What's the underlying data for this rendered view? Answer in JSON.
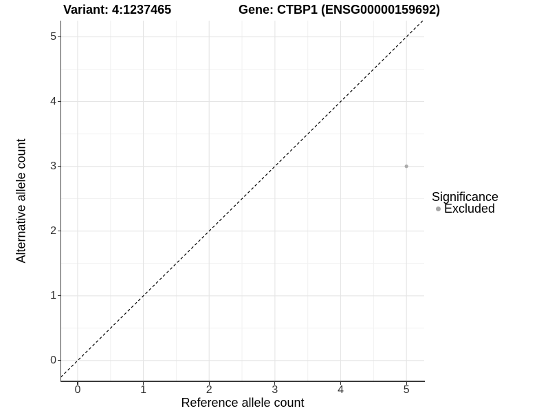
{
  "chart_data": {
    "type": "scatter",
    "titles": {
      "left": "Variant: 4:1237465",
      "right": "Gene: CTBP1 (ENSG00000159692)"
    },
    "xlabel": "Reference allele count",
    "ylabel": "Alternative allele count",
    "x_ticks": [
      0,
      1,
      2,
      3,
      4,
      5
    ],
    "y_ticks": [
      0,
      1,
      2,
      3,
      4,
      5
    ],
    "xlim": [
      -0.25,
      5.27
    ],
    "ylim": [
      -0.31,
      5.25
    ],
    "grid": {
      "major": true,
      "minor": true,
      "minor_step": 0.5
    },
    "points": [
      {
        "x": 5,
        "y": 3,
        "series": "Excluded"
      }
    ],
    "identity_line": {
      "slope": 1,
      "intercept": 0,
      "linetype": "dashed",
      "color": "#000000"
    },
    "legend": {
      "title": "Significance",
      "position": "right",
      "items": [
        {
          "label": "Excluded",
          "color": "#a6a6a6"
        }
      ]
    },
    "colors": {
      "point": "#ababab",
      "grid_major": "#e5e5e5",
      "grid_minor": "#f1f1f1",
      "axis_line": "#3a3a3a",
      "tick": "#333333",
      "tick_label": "#333333",
      "text": "#000000",
      "background": "#ffffff"
    }
  }
}
